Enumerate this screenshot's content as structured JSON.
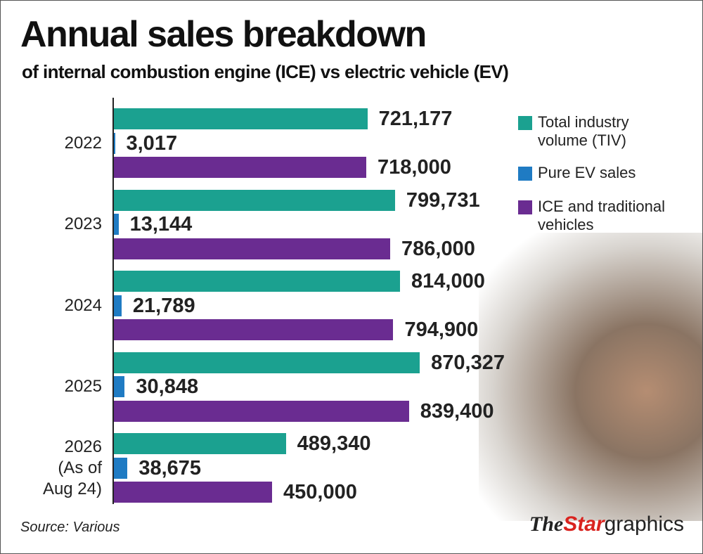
{
  "chart_data": {
    "type": "bar",
    "orientation": "horizontal",
    "title": "Annual sales breakdown",
    "subtitle": "of internal combustion engine (ICE) vs electric vehicle (EV)",
    "categories": [
      "2022",
      "2023",
      "2024",
      "2025",
      "2026\n(As of\nAug 24)"
    ],
    "series": [
      {
        "name": "Total industry volume (TIV)",
        "color": "#1ba190",
        "values": [
          721177,
          799731,
          814000,
          870327,
          489340
        ],
        "value_labels": [
          "721,177",
          "799,731",
          "814,000",
          "870,327",
          "489,340"
        ]
      },
      {
        "name": "Pure EV sales",
        "color": "#1f7bc3",
        "values": [
          3017,
          13144,
          21789,
          30848,
          38675
        ],
        "value_labels": [
          "3,017",
          "13,144",
          "21,789",
          "30,848",
          "38,675"
        ]
      },
      {
        "name": "ICE and traditional vehicles",
        "color": "#6a2c91",
        "values": [
          718000,
          786000,
          794900,
          839400,
          450000
        ],
        "value_labels": [
          "718,000",
          "786,000",
          "794,900",
          "839,400",
          "450,000"
        ]
      }
    ],
    "xlim": [
      0,
      1000000
    ],
    "source": "Source: Various",
    "logo": [
      "The",
      "Star",
      "graphics"
    ]
  }
}
